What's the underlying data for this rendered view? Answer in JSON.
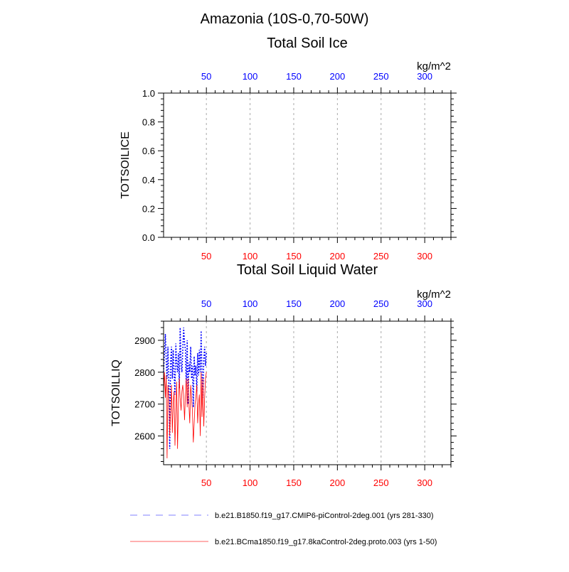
{
  "figure": {
    "suptitle": "Amazonia (10S-0,70-50W)",
    "colors": {
      "top_axis": "#0000ff",
      "bottom_axis": "#ff0000",
      "series1": "#0000ff",
      "series2": "#ff0000",
      "grid": "#aaaaaa",
      "frame": "#000000"
    }
  },
  "legend": {
    "items": [
      {
        "label": "b.e21.B1850.f19_g17.CMIP6-piControl-2deg.001 (yrs 281-330)",
        "color": "#8080ff",
        "style": "dashed"
      },
      {
        "label": "b.e21.BCma1850.f19_g17.8kaControl-2deg.proto.003 (yrs 1-50)",
        "color": "#ff6060",
        "style": "solid"
      }
    ]
  },
  "chart_data": [
    {
      "type": "line",
      "title": "Total Soil Ice",
      "ylabel": "TOTSOILICE",
      "units": "kg/m^2",
      "xlim": [
        1,
        330
      ],
      "ylim": [
        0,
        1
      ],
      "xticks": [
        50,
        100,
        150,
        200,
        250,
        300
      ],
      "xtick_labels_top": [
        "50",
        "100",
        "150",
        "200",
        "250",
        "300"
      ],
      "xtick_labels_bottom": [
        "50",
        "100",
        "150",
        "200",
        "250",
        "300"
      ],
      "yticks": [
        0.0,
        0.2,
        0.4,
        0.6,
        0.8,
        1.0
      ],
      "ytick_labels": [
        "0.0",
        "0.2",
        "0.4",
        "0.6",
        "0.8",
        "1.0"
      ],
      "grid_x": true,
      "series": []
    },
    {
      "type": "line",
      "title": "Total Soil Liquid Water",
      "ylabel": "TOTSOILLIQ",
      "units": "kg/m^2",
      "xlim": [
        1,
        330
      ],
      "ylim": [
        2510,
        2960
      ],
      "xticks": [
        50,
        100,
        150,
        200,
        250,
        300
      ],
      "xtick_labels_top": [
        "50",
        "100",
        "150",
        "200",
        "250",
        "300"
      ],
      "xtick_labels_bottom": [
        "50",
        "100",
        "150",
        "200",
        "250",
        "300"
      ],
      "yticks": [
        2600,
        2700,
        2800,
        2900
      ],
      "ytick_labels": [
        "2600",
        "2700",
        "2800",
        "2900"
      ],
      "grid_x": true,
      "series": [
        {
          "name": "b.e21.B1850.f19_g17.CMIP6-piControl-2deg.001 (yrs 281-330)",
          "style": "dashed",
          "x": [
            1,
            2,
            3,
            4,
            5,
            6,
            7,
            8,
            9,
            10,
            11,
            12,
            13,
            14,
            15,
            16,
            17,
            18,
            19,
            20,
            21,
            22,
            23,
            24,
            25,
            26,
            27,
            28,
            29,
            30,
            31,
            32,
            33,
            34,
            35,
            36,
            37,
            38,
            39,
            40,
            41,
            42,
            43,
            44,
            45,
            46,
            47,
            48,
            49,
            50
          ],
          "y": [
            2800,
            2860,
            2920,
            2840,
            2780,
            2880,
            2760,
            2560,
            2830,
            2880,
            2780,
            2870,
            2800,
            2730,
            2890,
            2830,
            2800,
            2860,
            2750,
            2940,
            2830,
            2800,
            2870,
            2940,
            2890,
            2870,
            2760,
            2900,
            2700,
            2830,
            2800,
            2880,
            2780,
            2820,
            2690,
            2850,
            2790,
            2820,
            2740,
            2860,
            2790,
            2870,
            2800,
            2930,
            2800,
            2720,
            2840,
            2880,
            2820,
            2860
          ]
        },
        {
          "name": "b.e21.BCma1850.f19_g17.8kaControl-2deg.proto.003 (yrs 1-50)",
          "style": "solid",
          "x": [
            1,
            2,
            3,
            4,
            5,
            6,
            7,
            8,
            9,
            10,
            11,
            12,
            13,
            14,
            15,
            16,
            17,
            18,
            19,
            20,
            21,
            22,
            23,
            24,
            25,
            26,
            27,
            28,
            29,
            30,
            31,
            32,
            33,
            34,
            35,
            36,
            37,
            38,
            39,
            40,
            41,
            42,
            43,
            44,
            45,
            46,
            47,
            48,
            49,
            50
          ],
          "y": [
            2740,
            2800,
            2720,
            2790,
            2530,
            2760,
            2720,
            2600,
            2670,
            2760,
            2610,
            2700,
            2740,
            2570,
            2680,
            2770,
            2560,
            2700,
            2780,
            2720,
            2680,
            2740,
            2760,
            2720,
            2650,
            2730,
            2780,
            2690,
            2780,
            2700,
            2640,
            2760,
            2720,
            2680,
            2580,
            2640,
            2700,
            2720,
            2760,
            2640,
            2700,
            2730,
            2600,
            2800,
            2660,
            2780,
            2630,
            2720,
            2780,
            2800
          ]
        }
      ]
    }
  ]
}
